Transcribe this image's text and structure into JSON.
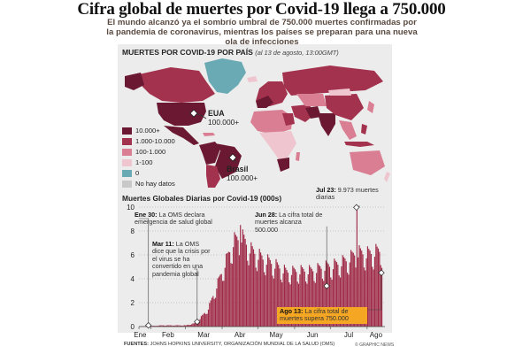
{
  "header": {
    "title": "Cifra global de muertes por Covid-19 llega a 750.000",
    "subtitle": "El mundo alcanzó ya el sombrío umbral de 750.000 muertes confirmadas por la pandemia de coronavirus, mientras los países se preparan para una nueva ola de infecciones"
  },
  "map": {
    "title": "MUERTES POR COVID-19 POR PAÍS",
    "date_note": "(al 13 de agosto, 13:00GMT)",
    "legend": [
      {
        "label": "10.000+",
        "color": "#6b1832"
      },
      {
        "label": "1.000-10.000",
        "color": "#a3324e"
      },
      {
        "label": "100-1.000",
        "color": "#d97e93"
      },
      {
        "label": "1-100",
        "color": "#efc6cf"
      },
      {
        "label": "0",
        "color": "#6aaab4"
      },
      {
        "label": "No hay datos",
        "color": "#c8c8c8"
      }
    ],
    "callouts": [
      {
        "name": "EUA",
        "value": "100.000+"
      },
      {
        "name": "Brasil",
        "value": "100.000+"
      }
    ]
  },
  "chart_title": "Muertes Globales Diarias por Covid-19 (000s)",
  "annotations": {
    "jan30": {
      "date": "Ene 30:",
      "text": "La OMS declara emergencia de salud global"
    },
    "mar11": {
      "date": "Mar 11:",
      "text": "La OMS dice que la crisis por el virus se ha convertido en una pandemia global"
    },
    "jun28": {
      "date": "Jun 28:",
      "text": "La cifra total de muertes alcanza 500.000"
    },
    "jul23": {
      "date": "Jul 23:",
      "text": "9.973 muertes diarias"
    },
    "aug13": {
      "date": "Ago 13:",
      "text": "La cifra total de muertes supera 750.000"
    }
  },
  "footer": {
    "sources_label": "FUENTES:",
    "sources_text": "JOHNS HOPKINS UNIVERSITY, ORGANIZACIÓN MUNDIAL DE LA SALUD (OMS)",
    "credit": "© GRAPHIC NEWS"
  },
  "colors": {
    "bar": "#9e2845",
    "accent": "#f5a623"
  },
  "chart_data": {
    "type": "bar",
    "title": "Muertes Globales Diarias por Covid-19 (000s)",
    "xlabel": "",
    "ylabel": "",
    "ylim": [
      0,
      10
    ],
    "yticks": [
      0,
      2,
      4,
      6,
      8,
      10
    ],
    "x_tick_labels": [
      "Ene",
      "Feb",
      "Mar",
      "Abr",
      "May",
      "Jun",
      "Jul",
      "Ago"
    ],
    "x_start": "2020-01-22",
    "grid": false,
    "weekly_pattern": [
      0.82,
      0.78,
      0.95,
      1.12,
      1.08,
      1.05,
      1.0
    ],
    "trend_points": [
      [
        "2020-01-22",
        0.01
      ],
      [
        "2020-02-01",
        0.05
      ],
      [
        "2020-02-10",
        0.1
      ],
      [
        "2020-02-20",
        0.1
      ],
      [
        "2020-03-01",
        0.1
      ],
      [
        "2020-03-10",
        0.3
      ],
      [
        "2020-03-20",
        1.5
      ],
      [
        "2020-03-31",
        4.4
      ],
      [
        "2020-04-10",
        7.0
      ],
      [
        "2020-04-17",
        7.4
      ],
      [
        "2020-04-25",
        6.3
      ],
      [
        "2020-05-05",
        5.6
      ],
      [
        "2020-05-15",
        5.1
      ],
      [
        "2020-05-25",
        4.5
      ],
      [
        "2020-06-05",
        4.6
      ],
      [
        "2020-06-15",
        4.6
      ],
      [
        "2020-06-25",
        4.9
      ],
      [
        "2020-07-05",
        5.1
      ],
      [
        "2020-07-15",
        5.5
      ],
      [
        "2020-07-23",
        6.1
      ],
      [
        "2020-08-01",
        6.0
      ],
      [
        "2020-08-13",
        6.3
      ]
    ],
    "peaks": [
      {
        "date": "2020-04-16",
        "value": 8.5
      },
      {
        "date": "2020-07-23",
        "value": 9.973
      }
    ],
    "events": [
      {
        "date": "2020-01-30",
        "value": 0.1
      },
      {
        "date": "2020-03-11",
        "value": 0.4
      },
      {
        "date": "2020-06-28",
        "value": 3.4
      },
      {
        "date": "2020-07-23",
        "value": 9.973
      },
      {
        "date": "2020-08-13",
        "value": 4.5
      }
    ]
  }
}
